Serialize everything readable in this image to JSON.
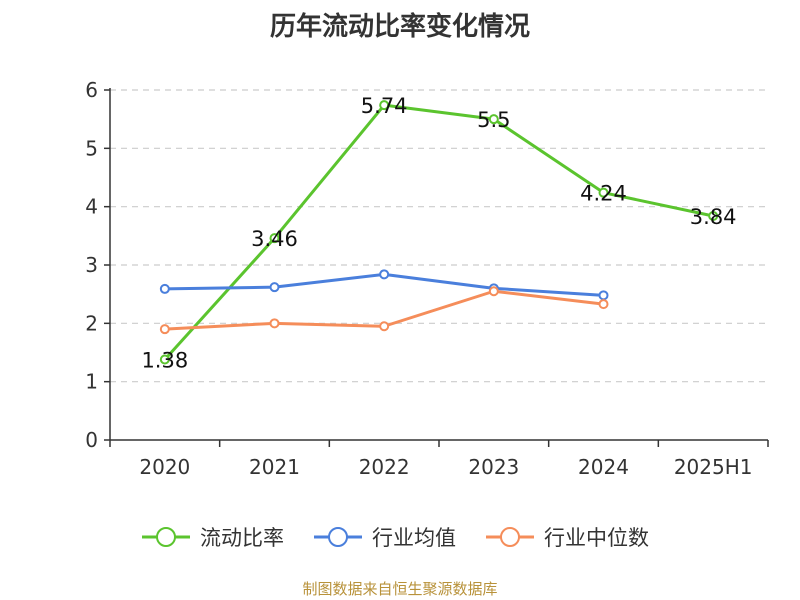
{
  "title": "历年流动比率变化情况",
  "source": "制图数据来自恒生聚源数据库",
  "chart_data": {
    "type": "line",
    "categories": [
      "2020",
      "2021",
      "2022",
      "2023",
      "2024",
      "2025H1"
    ],
    "ylim": [
      0,
      6
    ],
    "yticks": [
      0,
      1,
      2,
      3,
      4,
      5,
      6
    ],
    "grid": true,
    "legend_position": "bottom",
    "series": [
      {
        "name": "流动比率",
        "color": "#5bc42e",
        "values": [
          1.38,
          3.46,
          5.74,
          5.5,
          4.24,
          3.84
        ],
        "labels": [
          "1.38",
          "3.46",
          "5.74",
          "5.5",
          "4.24",
          "3.84"
        ]
      },
      {
        "name": "行业均值",
        "color": "#4a7fdc",
        "values": [
          2.59,
          2.62,
          2.84,
          2.6,
          2.48,
          null
        ],
        "labels": []
      },
      {
        "name": "行业中位数",
        "color": "#f58d5a",
        "values": [
          1.9,
          2.0,
          1.95,
          2.55,
          2.33,
          null
        ],
        "labels": []
      }
    ]
  }
}
